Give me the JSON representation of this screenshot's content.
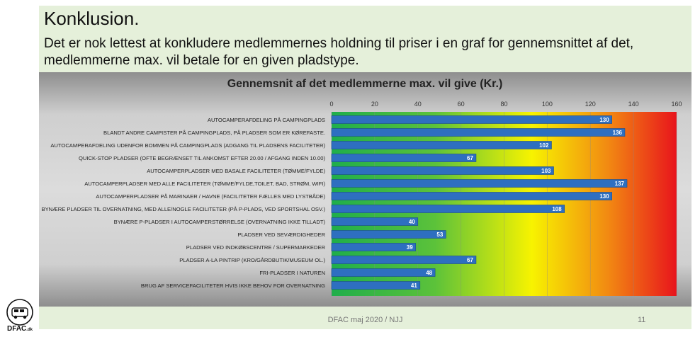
{
  "slide": {
    "title": "Konklusion.",
    "intro": "Det er nok lettest at konkludere medlemmernes holdning til priser i en graf for gennemsnittet af det, medlemmerne max. vil betale for en given pladstype.",
    "footer": "DFAC maj 2020 / NJJ",
    "page_number": "11",
    "logo_text": "DFAC.dk"
  },
  "chart_data": {
    "type": "bar",
    "orientation": "horizontal",
    "title": "Gennemsnit af det medlemmerne max. vil give (Kr.)",
    "xlim": [
      0,
      160
    ],
    "xticks": [
      0,
      20,
      40,
      60,
      80,
      100,
      120,
      140,
      160
    ],
    "bar_color": "#2e6fc0",
    "background_gradient": [
      "#1fae4b",
      "#f7f300",
      "#e8141c"
    ],
    "categories": [
      "AUTOCAMPERAFDELING PÅ CAMPINGPLADS",
      "BLANDT ANDRE CAMPISTER PÅ CAMPINGPLADS, PÅ PLADSER SOM ER KØREFASTE.",
      "AUTOCAMPERAFDELING UDENFOR BOMMEN PÅ CAMPINGPLADS (ADGANG TIL PLADSENS FACILITETER)",
      "QUICK-STOP PLADSER (OFTE BEGRÆNSET TIL ANKOMST EFTER 20.00 / AFGANG INDEN 10.00)",
      "AUTOCAMPERPLADSER MED BASALE FACILITETER (TØMME/FYLDE)",
      "AUTOCAMPERPLADSER MED ALLE FACILITETER (TØMME/FYLDE,TOILET, BAD, STRØM, WIFI)",
      "AUTOCAMPERPLADSER PÅ MARINAER / HAVNE (FACILITETER FÆLLES MED LYSTBÅDE)",
      "BYNÆRE PLADSER TIL OVERNATNING, MED ALLE/NOGLE FACILITETER (PÅ P-PLADS, VED SPORTSHAL OSV.)",
      "BYNÆRE P-PLADSER I AUTOCAMPERSTØRRELSE (OVERNATNING IKKE TILLADT)",
      "PLADSER VED SEVÆRDIGHEDER",
      "PLADSER VED INDKØBSCENTRE / SUPERMARKEDER",
      "PLADSER A-LA PINTRIP (KRO/GÅRDBUTIK/MUSEUM OL.)",
      "FRI-PLADSER I NATUREN",
      "BRUG AF SERVICEFACILITETER HVIS IKKE BEHOV FOR OVERNATNING"
    ],
    "values": [
      130,
      136,
      102,
      67,
      103,
      137,
      130,
      108,
      40,
      53,
      39,
      67,
      48,
      41
    ]
  }
}
